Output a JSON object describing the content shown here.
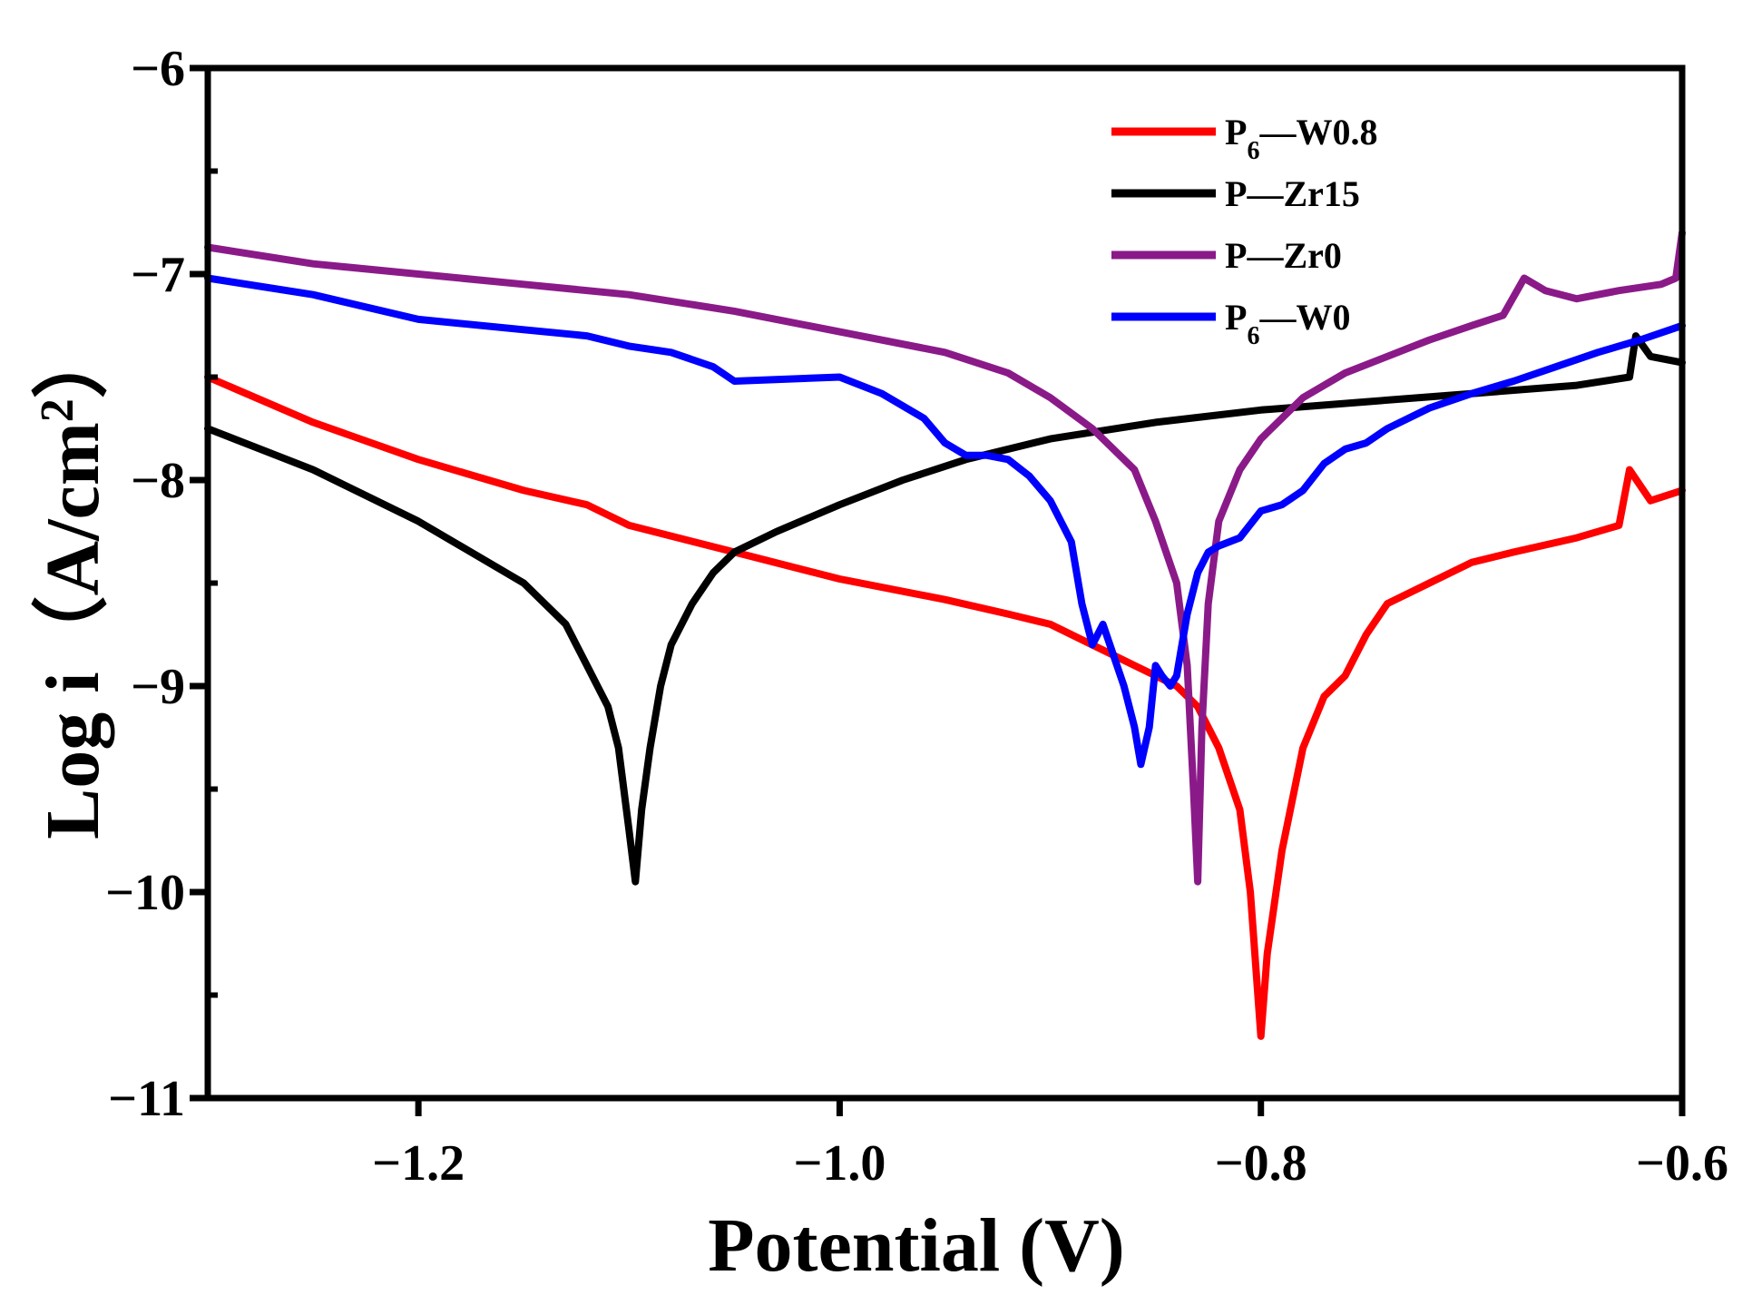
{
  "chart_data": {
    "type": "line",
    "title": "",
    "xlabel": "Potential (V)",
    "ylabel": "Log i（A/cm²）",
    "ylabel_main": "Log i（A/cm",
    "ylabel_sup": "2",
    "ylabel_end": "）",
    "xlim": [
      -1.3,
      -0.6
    ],
    "ylim": [
      -11,
      -6
    ],
    "xticks": [
      -1.2,
      -1.0,
      -0.8,
      -0.6
    ],
    "xtick_labels": [
      "−1.2",
      "−1.0",
      "−0.8",
      "−0.6"
    ],
    "yticks": [
      -11,
      -10,
      -9,
      -8,
      -7,
      -6
    ],
    "ytick_labels": [
      "−11",
      "−10",
      "−9",
      "−8",
      "−7",
      "−6"
    ],
    "legend_position": "top-right",
    "series": [
      {
        "name": "P6—W0.8",
        "label_main": "P",
        "label_sub": "6",
        "label_rest": "—W0.8",
        "color": "#ff0000",
        "points": [
          [
            -1.3,
            -7.5
          ],
          [
            -1.25,
            -7.72
          ],
          [
            -1.2,
            -7.9
          ],
          [
            -1.15,
            -8.05
          ],
          [
            -1.12,
            -8.12
          ],
          [
            -1.1,
            -8.22
          ],
          [
            -1.05,
            -8.35
          ],
          [
            -1.0,
            -8.48
          ],
          [
            -0.95,
            -8.58
          ],
          [
            -0.92,
            -8.65
          ],
          [
            -0.9,
            -8.7
          ],
          [
            -0.88,
            -8.8
          ],
          [
            -0.86,
            -8.9
          ],
          [
            -0.84,
            -9.0
          ],
          [
            -0.83,
            -9.1
          ],
          [
            -0.82,
            -9.3
          ],
          [
            -0.81,
            -9.6
          ],
          [
            -0.805,
            -10.0
          ],
          [
            -0.8,
            -10.7
          ],
          [
            -0.797,
            -10.3
          ],
          [
            -0.79,
            -9.8
          ],
          [
            -0.78,
            -9.3
          ],
          [
            -0.77,
            -9.05
          ],
          [
            -0.76,
            -8.95
          ],
          [
            -0.75,
            -8.75
          ],
          [
            -0.74,
            -8.6
          ],
          [
            -0.72,
            -8.5
          ],
          [
            -0.7,
            -8.4
          ],
          [
            -0.68,
            -8.35
          ],
          [
            -0.65,
            -8.28
          ],
          [
            -0.63,
            -8.22
          ],
          [
            -0.625,
            -7.95
          ],
          [
            -0.615,
            -8.1
          ],
          [
            -0.6,
            -8.05
          ]
        ]
      },
      {
        "name": "P—Zr15",
        "label_main": "P",
        "label_sub": "",
        "label_rest": "—Zr15",
        "color": "#000000",
        "points": [
          [
            -1.3,
            -7.75
          ],
          [
            -1.25,
            -7.95
          ],
          [
            -1.2,
            -8.2
          ],
          [
            -1.15,
            -8.5
          ],
          [
            -1.13,
            -8.7
          ],
          [
            -1.12,
            -8.9
          ],
          [
            -1.11,
            -9.1
          ],
          [
            -1.105,
            -9.3
          ],
          [
            -1.1,
            -9.7
          ],
          [
            -1.097,
            -9.95
          ],
          [
            -1.094,
            -9.6
          ],
          [
            -1.09,
            -9.3
          ],
          [
            -1.085,
            -9.0
          ],
          [
            -1.08,
            -8.8
          ],
          [
            -1.07,
            -8.6
          ],
          [
            -1.06,
            -8.45
          ],
          [
            -1.05,
            -8.35
          ],
          [
            -1.03,
            -8.25
          ],
          [
            -1.0,
            -8.12
          ],
          [
            -0.97,
            -8.0
          ],
          [
            -0.94,
            -7.9
          ],
          [
            -0.9,
            -7.8
          ],
          [
            -0.85,
            -7.72
          ],
          [
            -0.8,
            -7.66
          ],
          [
            -0.75,
            -7.62
          ],
          [
            -0.7,
            -7.58
          ],
          [
            -0.65,
            -7.54
          ],
          [
            -0.625,
            -7.5
          ],
          [
            -0.622,
            -7.3
          ],
          [
            -0.615,
            -7.4
          ],
          [
            -0.6,
            -7.43
          ]
        ]
      },
      {
        "name": "P—Zr0",
        "label_main": "P",
        "label_sub": "",
        "label_rest": "—Zr0",
        "color": "#8b1a89",
        "points": [
          [
            -1.3,
            -6.87
          ],
          [
            -1.25,
            -6.95
          ],
          [
            -1.2,
            -7.0
          ],
          [
            -1.15,
            -7.05
          ],
          [
            -1.1,
            -7.1
          ],
          [
            -1.05,
            -7.18
          ],
          [
            -1.0,
            -7.28
          ],
          [
            -0.95,
            -7.38
          ],
          [
            -0.92,
            -7.48
          ],
          [
            -0.9,
            -7.6
          ],
          [
            -0.88,
            -7.75
          ],
          [
            -0.86,
            -7.95
          ],
          [
            -0.85,
            -8.2
          ],
          [
            -0.84,
            -8.5
          ],
          [
            -0.835,
            -8.9
          ],
          [
            -0.832,
            -9.5
          ],
          [
            -0.83,
            -9.95
          ],
          [
            -0.828,
            -9.2
          ],
          [
            -0.825,
            -8.6
          ],
          [
            -0.82,
            -8.2
          ],
          [
            -0.81,
            -7.95
          ],
          [
            -0.8,
            -7.8
          ],
          [
            -0.78,
            -7.6
          ],
          [
            -0.76,
            -7.48
          ],
          [
            -0.74,
            -7.4
          ],
          [
            -0.72,
            -7.32
          ],
          [
            -0.7,
            -7.25
          ],
          [
            -0.685,
            -7.2
          ],
          [
            -0.675,
            -7.02
          ],
          [
            -0.665,
            -7.08
          ],
          [
            -0.65,
            -7.12
          ],
          [
            -0.63,
            -7.08
          ],
          [
            -0.61,
            -7.05
          ],
          [
            -0.603,
            -7.02
          ],
          [
            -0.6,
            -6.8
          ]
        ]
      },
      {
        "name": "P6—W0",
        "label_main": "P",
        "label_sub": "6",
        "label_rest": "—W0",
        "color": "#0000ff",
        "points": [
          [
            -1.3,
            -7.02
          ],
          [
            -1.25,
            -7.1
          ],
          [
            -1.2,
            -7.22
          ],
          [
            -1.15,
            -7.27
          ],
          [
            -1.12,
            -7.3
          ],
          [
            -1.1,
            -7.35
          ],
          [
            -1.08,
            -7.38
          ],
          [
            -1.06,
            -7.45
          ],
          [
            -1.05,
            -7.52
          ],
          [
            -1.0,
            -7.5
          ],
          [
            -0.98,
            -7.58
          ],
          [
            -0.96,
            -7.7
          ],
          [
            -0.95,
            -7.82
          ],
          [
            -0.94,
            -7.88
          ],
          [
            -0.93,
            -7.88
          ],
          [
            -0.92,
            -7.9
          ],
          [
            -0.91,
            -7.98
          ],
          [
            -0.9,
            -8.1
          ],
          [
            -0.89,
            -8.3
          ],
          [
            -0.885,
            -8.6
          ],
          [
            -0.88,
            -8.8
          ],
          [
            -0.875,
            -8.7
          ],
          [
            -0.87,
            -8.85
          ],
          [
            -0.865,
            -9.0
          ],
          [
            -0.86,
            -9.2
          ],
          [
            -0.857,
            -9.38
          ],
          [
            -0.853,
            -9.2
          ],
          [
            -0.85,
            -8.9
          ],
          [
            -0.847,
            -8.95
          ],
          [
            -0.843,
            -9.0
          ],
          [
            -0.84,
            -8.95
          ],
          [
            -0.835,
            -8.65
          ],
          [
            -0.83,
            -8.45
          ],
          [
            -0.825,
            -8.35
          ],
          [
            -0.82,
            -8.32
          ],
          [
            -0.81,
            -8.28
          ],
          [
            -0.8,
            -8.15
          ],
          [
            -0.79,
            -8.12
          ],
          [
            -0.78,
            -8.05
          ],
          [
            -0.77,
            -7.92
          ],
          [
            -0.76,
            -7.85
          ],
          [
            -0.75,
            -7.82
          ],
          [
            -0.74,
            -7.75
          ],
          [
            -0.72,
            -7.65
          ],
          [
            -0.7,
            -7.58
          ],
          [
            -0.68,
            -7.52
          ],
          [
            -0.66,
            -7.45
          ],
          [
            -0.64,
            -7.38
          ],
          [
            -0.62,
            -7.32
          ],
          [
            -0.6,
            -7.25
          ]
        ]
      }
    ]
  }
}
